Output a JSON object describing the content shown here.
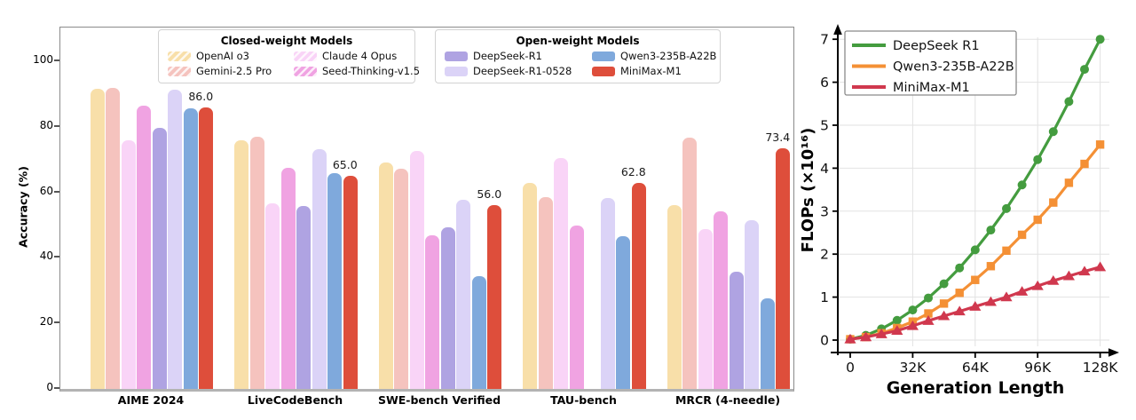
{
  "chart_data": [
    {
      "type": "bar",
      "ylabel": "Accuracy (%)",
      "ylim": [
        0,
        110
      ],
      "yticks": [
        0,
        20,
        40,
        60,
        80,
        100
      ],
      "grid": false,
      "categories": [
        "AIME 2024",
        "LiveCodeBench",
        "SWE-bench Verified",
        "TAU-bench",
        "MRCR (4-needle)"
      ],
      "legend_groups": [
        {
          "title": "Closed-weight Models",
          "series": [
            0,
            2,
            1,
            3
          ]
        },
        {
          "title": "Open-weight Models",
          "series": [
            4,
            6,
            5,
            7
          ]
        }
      ],
      "series": [
        {
          "name": "OpenAI o3",
          "color": "#F8DFA9",
          "hatch": true,
          "values": [
            91.6,
            75.8,
            69.1,
            63.0,
            56.0
          ]
        },
        {
          "name": "Gemini-2.5 Pro",
          "color": "#F5C3BE",
          "hatch": true,
          "values": [
            92.0,
            77.1,
            67.2,
            58.5,
            76.8
          ]
        },
        {
          "name": "Claude 4 Opus",
          "color": "#F9D4F7",
          "hatch": true,
          "values": [
            76.0,
            56.6,
            72.5,
            70.5,
            48.9
          ]
        },
        {
          "name": "Seed-Thinking-v1.5",
          "color": "#F0A3E2",
          "hatch": true,
          "values": [
            86.5,
            67.5,
            47.0,
            49.9,
            54.3
          ]
        },
        {
          "name": "DeepSeek-R1",
          "color": "#AFA3E2",
          "hatch": false,
          "values": [
            79.8,
            55.9,
            49.2,
            null,
            35.8
          ]
        },
        {
          "name": "DeepSeek-R1-0528",
          "color": "#DBD3F7",
          "hatch": false,
          "values": [
            91.4,
            73.1,
            57.6,
            58.4,
            51.5
          ]
        },
        {
          "name": "Qwen3-235B-A22B",
          "color": "#7FA9DC",
          "hatch": false,
          "values": [
            85.7,
            65.9,
            34.4,
            46.7,
            27.7
          ]
        },
        {
          "name": "MiniMax-M1",
          "color": "#DE4E3B",
          "hatch": false,
          "labeled": true,
          "values": [
            86.0,
            65.0,
            56.0,
            62.8,
            73.4
          ]
        }
      ],
      "value_labels": [
        "86.0",
        "65.0",
        "56.0",
        "62.8",
        "73.4"
      ]
    },
    {
      "type": "line",
      "xlabel": "Generation Length",
      "ylabel": "FLOPs (×10¹⁶)",
      "grid": true,
      "legend_position": "upper left",
      "xticks": [
        {
          "k": 0,
          "label": "0"
        },
        {
          "k": 32,
          "label": "32K"
        },
        {
          "k": 64,
          "label": "64K"
        },
        {
          "k": 96,
          "label": "96K"
        },
        {
          "k": 128,
          "label": "128K"
        }
      ],
      "yticks": [
        0,
        1,
        2,
        3,
        4,
        5,
        6,
        7
      ],
      "ylim": [
        0,
        7.3
      ],
      "x_k": [
        0,
        8,
        16,
        24,
        32,
        40,
        48,
        56,
        64,
        72,
        80,
        88,
        96,
        104,
        112,
        120,
        128
      ],
      "series": [
        {
          "name": "DeepSeek R1",
          "color": "#449C3F",
          "marker": "circle",
          "values": [
            0.02,
            0.11,
            0.26,
            0.46,
            0.7,
            0.98,
            1.31,
            1.68,
            2.1,
            2.56,
            3.06,
            3.61,
            4.2,
            4.85,
            5.55,
            6.3,
            7.0
          ]
        },
        {
          "name": "Qwen3-235B-A22B",
          "color": "#F49035",
          "marker": "square",
          "values": [
            0.02,
            0.07,
            0.16,
            0.28,
            0.43,
            0.62,
            0.85,
            1.1,
            1.4,
            1.72,
            2.08,
            2.45,
            2.8,
            3.2,
            3.66,
            4.1,
            4.55
          ]
        },
        {
          "name": "MiniMax-M1",
          "color": "#D0384E",
          "marker": "triangle",
          "values": [
            0.02,
            0.07,
            0.14,
            0.22,
            0.33,
            0.45,
            0.56,
            0.67,
            0.78,
            0.89,
            1.0,
            1.13,
            1.26,
            1.38,
            1.49,
            1.6,
            1.7
          ]
        }
      ]
    }
  ]
}
